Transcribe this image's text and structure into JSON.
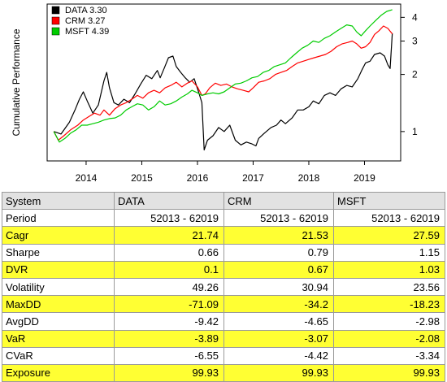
{
  "chart_data": {
    "type": "line",
    "title": "",
    "xlabel": "",
    "ylabel": "Cumulative Performance",
    "y_scale": "log",
    "ylim": [
      0.7,
      4.7
    ],
    "xlim": [
      2013.3,
      2019.65
    ],
    "x_ticks": [
      "2014",
      "2015",
      "2016",
      "2017",
      "2018",
      "2019"
    ],
    "y_ticks": [
      "1",
      "2",
      "3",
      "4"
    ],
    "legend_placement": "top-left",
    "grid": false,
    "series": [
      {
        "name": "DATA 3.30",
        "color": "#000000",
        "points": [
          [
            2013.42,
            1.0
          ],
          [
            2013.55,
            0.97
          ],
          [
            2013.7,
            1.12
          ],
          [
            2013.8,
            1.3
          ],
          [
            2013.88,
            1.48
          ],
          [
            2013.95,
            1.62
          ],
          [
            2014.02,
            1.45
          ],
          [
            2014.12,
            1.25
          ],
          [
            2014.22,
            1.38
          ],
          [
            2014.32,
            1.85
          ],
          [
            2014.37,
            2.05
          ],
          [
            2014.42,
            1.7
          ],
          [
            2014.5,
            1.42
          ],
          [
            2014.58,
            1.38
          ],
          [
            2014.68,
            1.48
          ],
          [
            2014.78,
            1.42
          ],
          [
            2014.88,
            1.58
          ],
          [
            2014.98,
            1.78
          ],
          [
            2015.08,
            1.98
          ],
          [
            2015.18,
            1.9
          ],
          [
            2015.28,
            2.1
          ],
          [
            2015.33,
            1.92
          ],
          [
            2015.4,
            2.15
          ],
          [
            2015.48,
            2.45
          ],
          [
            2015.56,
            2.5
          ],
          [
            2015.62,
            2.2
          ],
          [
            2015.7,
            2.05
          ],
          [
            2015.78,
            1.92
          ],
          [
            2015.86,
            1.82
          ],
          [
            2015.94,
            1.9
          ],
          [
            2016.02,
            1.62
          ],
          [
            2016.08,
            1.42
          ],
          [
            2016.12,
            0.8
          ],
          [
            2016.18,
            0.9
          ],
          [
            2016.28,
            0.95
          ],
          [
            2016.38,
            1.05
          ],
          [
            2016.48,
            1.0
          ],
          [
            2016.58,
            1.08
          ],
          [
            2016.68,
            0.9
          ],
          [
            2016.78,
            0.85
          ],
          [
            2016.88,
            0.88
          ],
          [
            2016.98,
            0.86
          ],
          [
            2017.05,
            0.84
          ],
          [
            2017.1,
            0.92
          ],
          [
            2017.2,
            0.98
          ],
          [
            2017.32,
            1.05
          ],
          [
            2017.42,
            1.08
          ],
          [
            2017.5,
            1.15
          ],
          [
            2017.58,
            1.1
          ],
          [
            2017.7,
            1.18
          ],
          [
            2017.8,
            1.3
          ],
          [
            2017.9,
            1.3
          ],
          [
            2018.0,
            1.35
          ],
          [
            2018.08,
            1.45
          ],
          [
            2018.18,
            1.4
          ],
          [
            2018.28,
            1.55
          ],
          [
            2018.38,
            1.6
          ],
          [
            2018.48,
            1.55
          ],
          [
            2018.58,
            1.68
          ],
          [
            2018.68,
            1.75
          ],
          [
            2018.78,
            1.72
          ],
          [
            2018.88,
            1.9
          ],
          [
            2018.95,
            2.1
          ],
          [
            2019.02,
            2.3
          ],
          [
            2019.1,
            2.35
          ],
          [
            2019.18,
            2.55
          ],
          [
            2019.28,
            2.6
          ],
          [
            2019.36,
            2.5
          ],
          [
            2019.42,
            2.25
          ],
          [
            2019.46,
            2.15
          ],
          [
            2019.5,
            3.3
          ]
        ]
      },
      {
        "name": "CRM 3.27",
        "color": "#ff0000",
        "points": [
          [
            2013.42,
            1.0
          ],
          [
            2013.5,
            0.9
          ],
          [
            2013.6,
            0.95
          ],
          [
            2013.72,
            1.02
          ],
          [
            2013.85,
            1.08
          ],
          [
            2013.95,
            1.15
          ],
          [
            2014.05,
            1.2
          ],
          [
            2014.15,
            1.25
          ],
          [
            2014.25,
            1.22
          ],
          [
            2014.32,
            1.3
          ],
          [
            2014.42,
            1.22
          ],
          [
            2014.52,
            1.32
          ],
          [
            2014.62,
            1.38
          ],
          [
            2014.72,
            1.42
          ],
          [
            2014.82,
            1.48
          ],
          [
            2014.92,
            1.55
          ],
          [
            2015.02,
            1.5
          ],
          [
            2015.12,
            1.6
          ],
          [
            2015.22,
            1.65
          ],
          [
            2015.32,
            1.6
          ],
          [
            2015.42,
            1.7
          ],
          [
            2015.52,
            1.75
          ],
          [
            2015.62,
            1.82
          ],
          [
            2015.72,
            1.72
          ],
          [
            2015.82,
            1.8
          ],
          [
            2015.9,
            1.85
          ],
          [
            2016.0,
            1.72
          ],
          [
            2016.08,
            1.55
          ],
          [
            2016.14,
            1.58
          ],
          [
            2016.22,
            1.7
          ],
          [
            2016.32,
            1.8
          ],
          [
            2016.42,
            1.75
          ],
          [
            2016.52,
            1.78
          ],
          [
            2016.62,
            1.72
          ],
          [
            2016.72,
            1.68
          ],
          [
            2016.82,
            1.65
          ],
          [
            2016.92,
            1.62
          ],
          [
            2017.0,
            1.7
          ],
          [
            2017.1,
            1.82
          ],
          [
            2017.2,
            1.85
          ],
          [
            2017.3,
            1.9
          ],
          [
            2017.4,
            2.0
          ],
          [
            2017.5,
            2.05
          ],
          [
            2017.6,
            2.1
          ],
          [
            2017.7,
            2.2
          ],
          [
            2017.8,
            2.3
          ],
          [
            2017.9,
            2.35
          ],
          [
            2018.0,
            2.4
          ],
          [
            2018.1,
            2.45
          ],
          [
            2018.2,
            2.5
          ],
          [
            2018.3,
            2.55
          ],
          [
            2018.4,
            2.65
          ],
          [
            2018.5,
            2.8
          ],
          [
            2018.6,
            2.9
          ],
          [
            2018.7,
            2.95
          ],
          [
            2018.78,
            3.0
          ],
          [
            2018.86,
            2.9
          ],
          [
            2018.94,
            2.75
          ],
          [
            2019.02,
            2.8
          ],
          [
            2019.1,
            2.95
          ],
          [
            2019.18,
            3.25
          ],
          [
            2019.26,
            3.4
          ],
          [
            2019.34,
            3.6
          ],
          [
            2019.42,
            3.5
          ],
          [
            2019.5,
            3.27
          ]
        ]
      },
      {
        "name": "MSFT 4.39",
        "color": "#00cc00",
        "points": [
          [
            2013.42,
            1.0
          ],
          [
            2013.52,
            0.88
          ],
          [
            2013.62,
            0.92
          ],
          [
            2013.72,
            0.98
          ],
          [
            2013.82,
            1.02
          ],
          [
            2013.92,
            1.08
          ],
          [
            2014.02,
            1.08
          ],
          [
            2014.12,
            1.1
          ],
          [
            2014.22,
            1.12
          ],
          [
            2014.32,
            1.15
          ],
          [
            2014.42,
            1.17
          ],
          [
            2014.52,
            1.18
          ],
          [
            2014.62,
            1.22
          ],
          [
            2014.72,
            1.3
          ],
          [
            2014.82,
            1.35
          ],
          [
            2014.92,
            1.4
          ],
          [
            2015.02,
            1.38
          ],
          [
            2015.12,
            1.3
          ],
          [
            2015.22,
            1.35
          ],
          [
            2015.32,
            1.45
          ],
          [
            2015.42,
            1.38
          ],
          [
            2015.52,
            1.4
          ],
          [
            2015.62,
            1.45
          ],
          [
            2015.72,
            1.52
          ],
          [
            2015.82,
            1.58
          ],
          [
            2015.9,
            1.65
          ],
          [
            2016.0,
            1.6
          ],
          [
            2016.08,
            1.55
          ],
          [
            2016.18,
            1.58
          ],
          [
            2016.28,
            1.6
          ],
          [
            2016.38,
            1.58
          ],
          [
            2016.48,
            1.62
          ],
          [
            2016.58,
            1.7
          ],
          [
            2016.68,
            1.78
          ],
          [
            2016.78,
            1.8
          ],
          [
            2016.88,
            1.85
          ],
          [
            2016.98,
            1.92
          ],
          [
            2017.08,
            1.95
          ],
          [
            2017.18,
            2.05
          ],
          [
            2017.28,
            2.1
          ],
          [
            2017.38,
            2.2
          ],
          [
            2017.48,
            2.25
          ],
          [
            2017.58,
            2.3
          ],
          [
            2017.68,
            2.45
          ],
          [
            2017.78,
            2.6
          ],
          [
            2017.88,
            2.75
          ],
          [
            2017.98,
            2.85
          ],
          [
            2018.08,
            3.0
          ],
          [
            2018.18,
            2.95
          ],
          [
            2018.28,
            3.1
          ],
          [
            2018.38,
            3.2
          ],
          [
            2018.48,
            3.35
          ],
          [
            2018.58,
            3.5
          ],
          [
            2018.68,
            3.65
          ],
          [
            2018.78,
            3.6
          ],
          [
            2018.86,
            3.35
          ],
          [
            2018.94,
            3.2
          ],
          [
            2019.02,
            3.4
          ],
          [
            2019.1,
            3.6
          ],
          [
            2019.2,
            3.85
          ],
          [
            2019.3,
            4.1
          ],
          [
            2019.4,
            4.3
          ],
          [
            2019.5,
            4.39
          ]
        ]
      }
    ]
  },
  "table": {
    "header": [
      "System",
      "DATA",
      "CRM",
      "MSFT"
    ],
    "rows": [
      {
        "label": "Period",
        "values": [
          "52013 - 62019",
          "52013 - 62019",
          "52013 - 62019"
        ],
        "highlight": false
      },
      {
        "label": "Cagr",
        "values": [
          "21.74",
          "21.53",
          "27.59"
        ],
        "highlight": true
      },
      {
        "label": "Sharpe",
        "values": [
          "0.66",
          "0.79",
          "1.15"
        ],
        "highlight": false
      },
      {
        "label": "DVR",
        "values": [
          "0.1",
          "0.67",
          "1.03"
        ],
        "highlight": true
      },
      {
        "label": "Volatility",
        "values": [
          "49.26",
          "30.94",
          "23.56"
        ],
        "highlight": false
      },
      {
        "label": "MaxDD",
        "values": [
          "-71.09",
          "-34.2",
          "-18.23"
        ],
        "highlight": true
      },
      {
        "label": "AvgDD",
        "values": [
          "-9.42",
          "-4.65",
          "-2.98"
        ],
        "highlight": false
      },
      {
        "label": "VaR",
        "values": [
          "-3.89",
          "-3.07",
          "-2.08"
        ],
        "highlight": true
      },
      {
        "label": "CVaR",
        "values": [
          "-6.55",
          "-4.42",
          "-3.34"
        ],
        "highlight": false
      },
      {
        "label": "Exposure",
        "values": [
          "99.93",
          "99.93",
          "99.93"
        ],
        "highlight": true
      }
    ]
  },
  "colors": {
    "highlight_row": "#ffff33",
    "header_row": "#e2e2e2",
    "grid_border": "#9a9a9a"
  }
}
